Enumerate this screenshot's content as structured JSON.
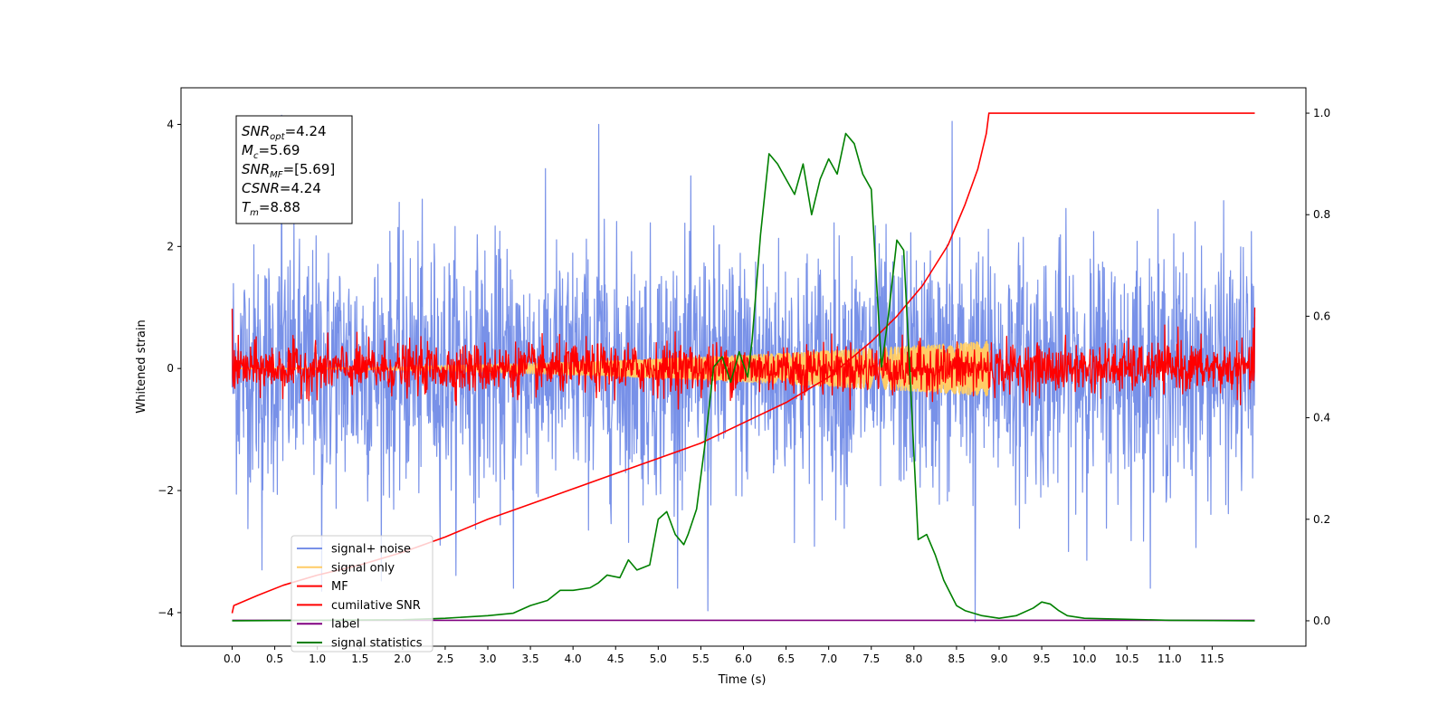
{
  "chart_data": {
    "type": "line",
    "xlabel": "Time (s)",
    "ylabel": "Whitened strain",
    "xlim": [
      -0.6,
      12.6
    ],
    "ylim": [
      -4.55,
      4.6
    ],
    "y2lim": [
      -0.05,
      1.05
    ],
    "xticks": [
      0.0,
      0.5,
      1.0,
      1.5,
      2.0,
      2.5,
      3.0,
      3.5,
      4.0,
      4.5,
      5.0,
      5.5,
      6.0,
      6.5,
      7.0,
      7.5,
      8.0,
      8.5,
      9.0,
      9.5,
      10.0,
      10.5,
      11.0,
      11.5
    ],
    "xtick_labels": [
      "0.0",
      "0.5",
      "1.0",
      "1.5",
      "2.0",
      "2.5",
      "3.0",
      "3.5",
      "4.0",
      "4.5",
      "5.0",
      "5.5",
      "6.0",
      "6.5",
      "7.0",
      "7.5",
      "8.0",
      "8.5",
      "9.0",
      "9.5",
      "10.0",
      "10.5",
      "11.0",
      "11.5"
    ],
    "yticks": [
      -4,
      -2,
      0,
      2,
      4
    ],
    "ytick_labels": [
      "−4",
      "−2",
      "0",
      "2",
      "4"
    ],
    "y2ticks": [
      0.0,
      0.2,
      0.4,
      0.6,
      0.8,
      1.0
    ],
    "y2tick_labels": [
      "0.0",
      "0.2",
      "0.4",
      "0.6",
      "0.8",
      "1.0"
    ],
    "grid": false,
    "legend_position": "lower-left",
    "series": [
      {
        "name": "signal+ noise",
        "color": "#7891e8",
        "axis": "left",
        "kind": "noise",
        "x_range": [
          0,
          12.0
        ],
        "std": 1.0,
        "peak_points": [
          [
            0.58,
            4.15
          ],
          [
            4.3,
            4.0
          ],
          [
            8.45,
            4.05
          ],
          [
            5.58,
            -3.97
          ],
          [
            8.72,
            -4.15
          ],
          [
            0.35,
            -3.3
          ],
          [
            3.3,
            -3.6
          ],
          [
            1.05,
            -3.65
          ]
        ]
      },
      {
        "name": "signal only",
        "color": "#ffcc66",
        "axis": "left",
        "kind": "chirp",
        "x_range": [
          0,
          8.88
        ],
        "amplitude_end": 0.45
      },
      {
        "name": "MF",
        "color": "#ff0000",
        "axis": "left",
        "kind": "noise",
        "x_range": [
          0,
          12.0
        ],
        "std": 0.2,
        "peak_points": [
          [
            0.0,
            0.98
          ],
          [
            12.0,
            1.0
          ],
          [
            5.2,
            0.6
          ],
          [
            11.1,
            0.68
          ],
          [
            8.7,
            -0.45
          ]
        ]
      },
      {
        "name": "cumilative SNR",
        "color": "#ff0000",
        "axis": "right",
        "x": [
          0.0,
          0.02,
          0.3,
          0.6,
          1.0,
          1.5,
          2.0,
          2.5,
          3.0,
          3.5,
          4.0,
          4.5,
          5.0,
          5.5,
          6.0,
          6.5,
          7.0,
          7.5,
          7.8,
          8.1,
          8.4,
          8.6,
          8.75,
          8.85,
          8.88,
          9.5,
          10.0,
          11.0,
          12.0
        ],
        "y": [
          0.015,
          0.03,
          0.05,
          0.07,
          0.09,
          0.11,
          0.135,
          0.165,
          0.2,
          0.23,
          0.26,
          0.29,
          0.32,
          0.35,
          0.39,
          0.43,
          0.48,
          0.55,
          0.6,
          0.66,
          0.74,
          0.82,
          0.89,
          0.96,
          1.0,
          1.0,
          1.0,
          1.0,
          1.0
        ]
      },
      {
        "name": "label",
        "color": "#800080",
        "axis": "right",
        "x": [
          0.0,
          12.0
        ],
        "y": [
          0.001,
          0.001
        ]
      },
      {
        "name": "signal statistics",
        "color": "#008000",
        "axis": "right",
        "x": [
          0.0,
          1.0,
          2.0,
          2.5,
          3.0,
          3.3,
          3.5,
          3.7,
          3.85,
          4.0,
          4.2,
          4.3,
          4.4,
          4.55,
          4.65,
          4.75,
          4.9,
          5.0,
          5.1,
          5.2,
          5.3,
          5.35,
          5.45,
          5.55,
          5.65,
          5.75,
          5.85,
          5.95,
          6.05,
          6.1,
          6.2,
          6.3,
          6.4,
          6.5,
          6.6,
          6.7,
          6.8,
          6.9,
          7.0,
          7.1,
          7.2,
          7.3,
          7.4,
          7.5,
          7.55,
          7.62,
          7.7,
          7.8,
          7.88,
          7.95,
          8.05,
          8.15,
          8.25,
          8.35,
          8.5,
          8.6,
          8.8,
          9.0,
          9.2,
          9.4,
          9.5,
          9.6,
          9.7,
          9.8,
          10.0,
          11.0,
          12.0
        ],
        "y": [
          0.0,
          0.001,
          0.002,
          0.005,
          0.01,
          0.015,
          0.03,
          0.04,
          0.06,
          0.06,
          0.065,
          0.075,
          0.09,
          0.085,
          0.12,
          0.1,
          0.11,
          0.2,
          0.215,
          0.17,
          0.15,
          0.17,
          0.22,
          0.35,
          0.5,
          0.52,
          0.47,
          0.53,
          0.48,
          0.55,
          0.76,
          0.92,
          0.9,
          0.87,
          0.84,
          0.9,
          0.8,
          0.87,
          0.91,
          0.88,
          0.96,
          0.94,
          0.88,
          0.85,
          0.7,
          0.5,
          0.6,
          0.75,
          0.73,
          0.5,
          0.16,
          0.17,
          0.13,
          0.08,
          0.03,
          0.02,
          0.01,
          0.005,
          0.01,
          0.025,
          0.037,
          0.033,
          0.02,
          0.01,
          0.005,
          0.001,
          0.0
        ]
      }
    ],
    "annotations": [
      {
        "base": "SNR",
        "sub": "opt",
        "value": "=4.24"
      },
      {
        "base": "M",
        "sub": "c",
        "value": "=5.69"
      },
      {
        "base": "SNR",
        "sub": "MF",
        "value": "=[5.69]"
      },
      {
        "base": "CSNR",
        "sub": "",
        "value": "=4.24"
      },
      {
        "base": "T",
        "sub": "m",
        "value": "=8.88"
      }
    ]
  }
}
